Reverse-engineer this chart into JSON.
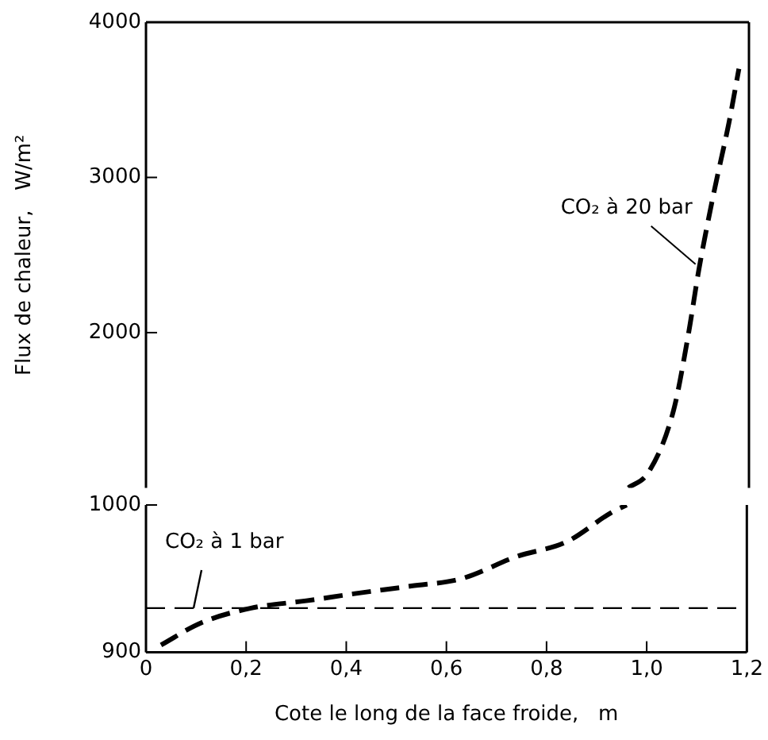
{
  "chart_data": [
    {
      "type": "line",
      "ylabel": "Flux de chaleur,   W/m²",
      "series": [
        {
          "name": "CO₂ à 20 bar",
          "color": "#000000",
          "line_style": "dashed",
          "x": [
            0.96,
            1.0,
            1.05,
            1.08,
            1.1,
            1.13,
            1.16,
            1.18
          ],
          "values": [
            1000,
            1100,
            1500,
            2000,
            2400,
            2900,
            3350,
            3700
          ]
        }
      ],
      "xlim": [
        0,
        1.2
      ],
      "ylim": [
        1000,
        4000
      ],
      "yticks": [
        2000,
        3000,
        4000
      ],
      "tick_labels": "y",
      "grid": false,
      "legend": false,
      "marker": "none"
    },
    {
      "type": "line",
      "xlabel": "Cote le long de la face froide,   m",
      "series": [
        {
          "color": "#000000",
          "line_style": "dashed",
          "x": [
            0.03,
            0.11,
            0.21,
            0.32,
            0.42,
            0.53,
            0.63,
            0.74,
            0.84,
            0.93,
            0.96
          ],
          "values": [
            905,
            920,
            930,
            935,
            940,
            945,
            950,
            965,
            975,
            995,
            1000
          ]
        }
      ],
      "ref_lines": [
        {
          "axis": "y",
          "value": 930,
          "label": "CO₂ à 1 bar",
          "color": "#000000",
          "line_style": "dashed"
        }
      ],
      "xlim": [
        0,
        1.2
      ],
      "xticks": [
        0,
        {
          "value": 0.2,
          "label": "0,2"
        },
        {
          "value": 0.4,
          "label": "0,4"
        },
        {
          "value": 0.6,
          "label": "0,6"
        },
        {
          "value": 0.8,
          "label": "0,8"
        },
        {
          "value": 1.0,
          "label": "1,0"
        },
        {
          "value": 1.2,
          "label": "1,2"
        }
      ],
      "ylim": [
        900,
        1000
      ],
      "yticks": [
        900,
        1000
      ],
      "grid": false,
      "legend": false,
      "marker": "none"
    }
  ]
}
